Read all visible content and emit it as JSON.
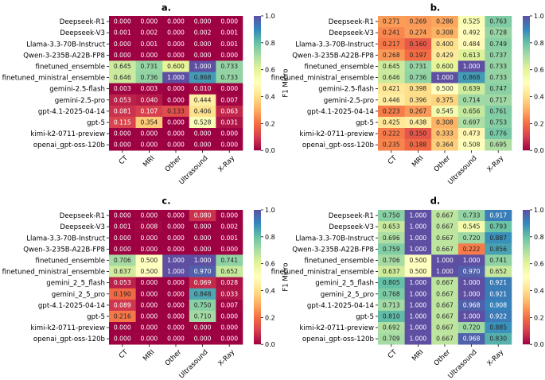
{
  "chart_data": [
    {
      "type": "heatmap",
      "panel_label": "a.",
      "rows": [
        "Deepseek-R1",
        "Deepseek-V3",
        "Llama-3.3-70B-Instruct",
        "Qwen-3-235B-A22B-FP8",
        "finetuned_ensemble",
        "finetuned_ministral_ensemble",
        "gemini-2.5-flash",
        "gemini-2.5-pro",
        "gpt-4.1-2025-04-14",
        "gpt-5",
        "kimi-k2-0711-preview",
        "openai_gpt-oss-120b"
      ],
      "columns": [
        "CT",
        "MRI",
        "Other",
        "Ultrasound",
        "X-Ray"
      ],
      "values": [
        [
          "0.000",
          "0.000",
          "0.000",
          "0.000",
          "0.000"
        ],
        [
          "0.001",
          "0.002",
          "0.000",
          "0.002",
          "0.001"
        ],
        [
          "0.000",
          "0.001",
          "0.000",
          "0.000",
          "0.001"
        ],
        [
          "0.000",
          "0.000",
          "0.000",
          "0.000",
          "0.000"
        ],
        [
          "0.645",
          "0.731",
          "0.600",
          "1.000",
          "0.733"
        ],
        [
          "0.646",
          "0.736",
          "1.000",
          "0.868",
          "0.733"
        ],
        [
          "0.003",
          "0.003",
          "0.000",
          "0.010",
          "0.000"
        ],
        [
          "0.053",
          "0.040",
          "0.000",
          "0.444",
          "0.007"
        ],
        [
          "0.081",
          "0.107",
          "0.133",
          "0.406",
          "0.063"
        ],
        [
          "0.115",
          "0.354",
          "0.000",
          "0.528",
          "0.031"
        ],
        [
          "0.000",
          "0.000",
          "0.000",
          "0.000",
          "0.000"
        ],
        [
          "0.000",
          "0.000",
          "0.000",
          "0.000",
          "0.000"
        ]
      ],
      "colorbar_label": "F1 Micro",
      "colorbar_ticks": [
        "0.0",
        "0.2",
        "0.4",
        "0.6",
        "0.8",
        "1.0"
      ],
      "vmin": 0,
      "vmax": 1
    },
    {
      "type": "heatmap",
      "panel_label": "b.",
      "rows": [
        "Deepseek-R1",
        "Deepseek-V3",
        "Llama-3.3-70B-Instruct",
        "Qwen-3-235B-A22B-FP8",
        "finetuned_ensemble",
        "finetuned_ministral_ensemble",
        "gemini-2.5-flash",
        "gemini-2.5-pro",
        "gpt-4.1-2025-04-14",
        "gpt-5",
        "kimi-k2-0711-preview",
        "openai_gpt-oss-120b"
      ],
      "columns": [
        "CT",
        "MRI",
        "Other",
        "Ultrasound",
        "X-Ray"
      ],
      "values": [
        [
          "0.271",
          "0.269",
          "0.286",
          "0.525",
          "0.763"
        ],
        [
          "0.241",
          "0.274",
          "0.308",
          "0.492",
          "0.728"
        ],
        [
          "0.217",
          "0.160",
          "0.400",
          "0.484",
          "0.749"
        ],
        [
          "0.268",
          "0.197",
          "0.429",
          "0.613",
          "0.737"
        ],
        [
          "0.645",
          "0.731",
          "0.600",
          "1.000",
          "0.733"
        ],
        [
          "0.646",
          "0.736",
          "1.000",
          "0.868",
          "0.733"
        ],
        [
          "0.421",
          "0.398",
          "0.500",
          "0.639",
          "0.747"
        ],
        [
          "0.446",
          "0.396",
          "0.375",
          "0.714",
          "0.717"
        ],
        [
          "0.223",
          "0.267",
          "0.545",
          "0.656",
          "0.761"
        ],
        [
          "0.425",
          "0.438",
          "0.308",
          "0.697",
          "0.753"
        ],
        [
          "0.222",
          "0.150",
          "0.333",
          "0.473",
          "0.776"
        ],
        [
          "0.235",
          "0.188",
          "0.364",
          "0.508",
          "0.695"
        ]
      ],
      "colorbar_label": "F1 Micro",
      "colorbar_ticks": [
        "0.0",
        "0.2",
        "0.4",
        "0.6",
        "0.8",
        "1.0"
      ],
      "vmin": 0,
      "vmax": 1
    },
    {
      "type": "heatmap",
      "panel_label": "c.",
      "rows": [
        "Deepseek-R1",
        "Deepseek-V3",
        "Llama-3.3-70B-Instruct",
        "Qwen-3-235B-A22B-FP8",
        "finetuned_ensemble",
        "finetuned_ministral_ensemble",
        "gemini_2_5_flash",
        "gemini_2_5_pro",
        "gpt-4.1-2025-04-14",
        "gpt-5",
        "kimi-k2-0711-preview",
        "openai_gpt-oss-120b"
      ],
      "columns": [
        "CT",
        "MRI",
        "Other",
        "Ultrasound",
        "X-Ray"
      ],
      "values": [
        [
          "0.000",
          "0.000",
          "0.000",
          "0.080",
          "0.000"
        ],
        [
          "0.001",
          "0.008",
          "0.000",
          "0.000",
          "0.002"
        ],
        [
          "0.000",
          "0.000",
          "0.000",
          "0.000",
          "0.001"
        ],
        [
          "0.000",
          "0.000",
          "0.000",
          "0.000",
          "0.000"
        ],
        [
          "0.706",
          "0.500",
          "1.000",
          "1.000",
          "0.741"
        ],
        [
          "0.637",
          "0.500",
          "1.000",
          "0.970",
          "0.652"
        ],
        [
          "0.053",
          "0.000",
          "0.000",
          "0.069",
          "0.028"
        ],
        [
          "0.190",
          "0.000",
          "0.000",
          "0.848",
          "0.033"
        ],
        [
          "0.089",
          "0.000",
          "0.000",
          "0.750",
          "0.007"
        ],
        [
          "0.216",
          "0.000",
          "0.000",
          "0.710",
          "0.000"
        ],
        [
          "0.000",
          "0.000",
          "0.000",
          "0.000",
          "0.000"
        ],
        [
          "0.000",
          "0.000",
          "0.000",
          "0.000",
          "0.000"
        ]
      ],
      "colorbar_label": "F1 Micro",
      "colorbar_ticks": [
        "0.0",
        "0.2",
        "0.4",
        "0.6",
        "0.8",
        "1.0"
      ],
      "vmin": 0,
      "vmax": 1
    },
    {
      "type": "heatmap",
      "panel_label": "d.",
      "rows": [
        "Deepseek-R1",
        "Deepseek-V3",
        "Llama-3.3-70B-Instruct",
        "Qwen-3-235B-A22B-FP8",
        "finetuned_ensemble",
        "finetuned_ministral_ensemble",
        "gemini_2_5_flash",
        "gemini_2_5_pro",
        "gpt-4.1-2025-04-14",
        "gpt-5",
        "kimi-k2-0711-preview",
        "openai_gpt-oss-120b"
      ],
      "columns": [
        "CT",
        "MRI",
        "Other",
        "Ultrasound",
        "X-Ray"
      ],
      "values": [
        [
          "0.750",
          "1.000",
          "0.667",
          "0.733",
          "0.917"
        ],
        [
          "0.653",
          "1.000",
          "0.667",
          "0.545",
          "0.793"
        ],
        [
          "0.696",
          "1.000",
          "0.667",
          "0.720",
          "0.887"
        ],
        [
          "0.759",
          "1.000",
          "0.667",
          "0.222",
          "0.856"
        ],
        [
          "0.706",
          "0.500",
          "1.000",
          "1.000",
          "0.741"
        ],
        [
          "0.637",
          "0.500",
          "1.000",
          "0.970",
          "0.652"
        ],
        [
          "0.805",
          "1.000",
          "0.667",
          "1.000",
          "0.921"
        ],
        [
          "0.768",
          "1.000",
          "0.667",
          "1.000",
          "0.921"
        ],
        [
          "0.713",
          "1.000",
          "0.667",
          "0.968",
          "0.908"
        ],
        [
          "0.810",
          "1.000",
          "0.667",
          "1.000",
          "0.922"
        ],
        [
          "0.692",
          "1.000",
          "0.667",
          "0.720",
          "0.885"
        ],
        [
          "0.709",
          "1.000",
          "0.667",
          "0.968",
          "0.830"
        ]
      ],
      "colorbar_label": "F1 Micro",
      "colorbar_ticks": [
        "0.0",
        "0.2",
        "0.4",
        "0.6",
        "0.8",
        "1.0"
      ],
      "vmin": 0,
      "vmax": 1
    }
  ]
}
